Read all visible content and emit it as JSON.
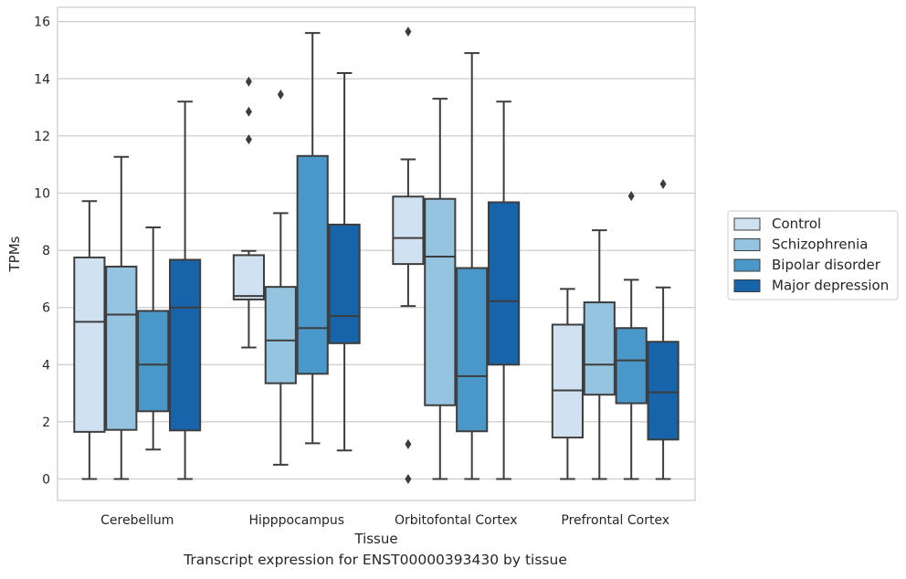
{
  "caption": "Transcript expression for ENST00000393430 by tissue",
  "chart_data": {
    "type": "boxplot",
    "xlabel": "Tissue",
    "ylabel": "TPMs",
    "ylim": [
      -0.75,
      16.5
    ],
    "yticks": [
      0,
      2,
      4,
      6,
      8,
      10,
      12,
      14,
      16
    ],
    "grid": "horizontal",
    "legend_position": "right",
    "categories": [
      "Cerebellum",
      "Hipppocampus",
      "Orbitofontal Cortex",
      "Prefrontal Cortex"
    ],
    "series": [
      {
        "name": "Control",
        "color": "#d0e1f2",
        "boxes": [
          {
            "whislo": 0.0,
            "q1": 1.65,
            "med": 5.5,
            "q3": 7.75,
            "whishi": 9.72,
            "fliers": []
          },
          {
            "whislo": 4.6,
            "q1": 6.28,
            "med": 6.4,
            "q3": 7.83,
            "whishi": 7.98,
            "fliers": [
              11.88,
              12.85,
              13.9
            ]
          },
          {
            "whislo": 6.05,
            "q1": 7.52,
            "med": 8.43,
            "q3": 9.88,
            "whishi": 11.18,
            "fliers": [
              0.0,
              1.22,
              15.65
            ]
          },
          {
            "whislo": 0.0,
            "q1": 1.45,
            "med": 3.1,
            "q3": 5.4,
            "whishi": 6.65,
            "fliers": []
          }
        ]
      },
      {
        "name": "Schizophrenia",
        "color": "#94c4df",
        "boxes": [
          {
            "whislo": 0.0,
            "q1": 1.72,
            "med": 5.75,
            "q3": 7.43,
            "whishi": 11.27,
            "fliers": []
          },
          {
            "whislo": 0.5,
            "q1": 3.35,
            "med": 4.85,
            "q3": 6.72,
            "whishi": 9.3,
            "fliers": [
              13.45
            ]
          },
          {
            "whislo": 0.0,
            "q1": 2.58,
            "med": 7.78,
            "q3": 9.8,
            "whishi": 13.3,
            "fliers": []
          },
          {
            "whislo": 0.0,
            "q1": 2.95,
            "med": 4.0,
            "q3": 6.18,
            "whishi": 8.7,
            "fliers": []
          }
        ]
      },
      {
        "name": "Bipolar disorder",
        "color": "#4a98c9",
        "boxes": [
          {
            "whislo": 1.03,
            "q1": 2.37,
            "med": 4.0,
            "q3": 5.88,
            "whishi": 8.8,
            "fliers": []
          },
          {
            "whislo": 1.25,
            "q1": 3.68,
            "med": 5.28,
            "q3": 11.3,
            "whishi": 15.6,
            "fliers": []
          },
          {
            "whislo": 0.0,
            "q1": 1.67,
            "med": 3.6,
            "q3": 7.38,
            "whishi": 14.9,
            "fliers": []
          },
          {
            "whislo": 0.0,
            "q1": 2.65,
            "med": 4.15,
            "q3": 5.28,
            "whishi": 6.97,
            "fliers": [
              9.9
            ]
          }
        ]
      },
      {
        "name": "Major depression",
        "color": "#1764ab",
        "boxes": [
          {
            "whislo": 0.0,
            "q1": 1.7,
            "med": 6.0,
            "q3": 7.67,
            "whishi": 13.2,
            "fliers": []
          },
          {
            "whislo": 1.0,
            "q1": 4.75,
            "med": 5.7,
            "q3": 8.9,
            "whishi": 14.2,
            "fliers": []
          },
          {
            "whislo": 0.0,
            "q1": 4.0,
            "med": 6.22,
            "q3": 9.68,
            "whishi": 13.2,
            "fliers": []
          },
          {
            "whislo": 0.0,
            "q1": 1.38,
            "med": 3.03,
            "q3": 4.8,
            "whishi": 6.7,
            "fliers": [
              10.32
            ]
          }
        ]
      }
    ]
  }
}
